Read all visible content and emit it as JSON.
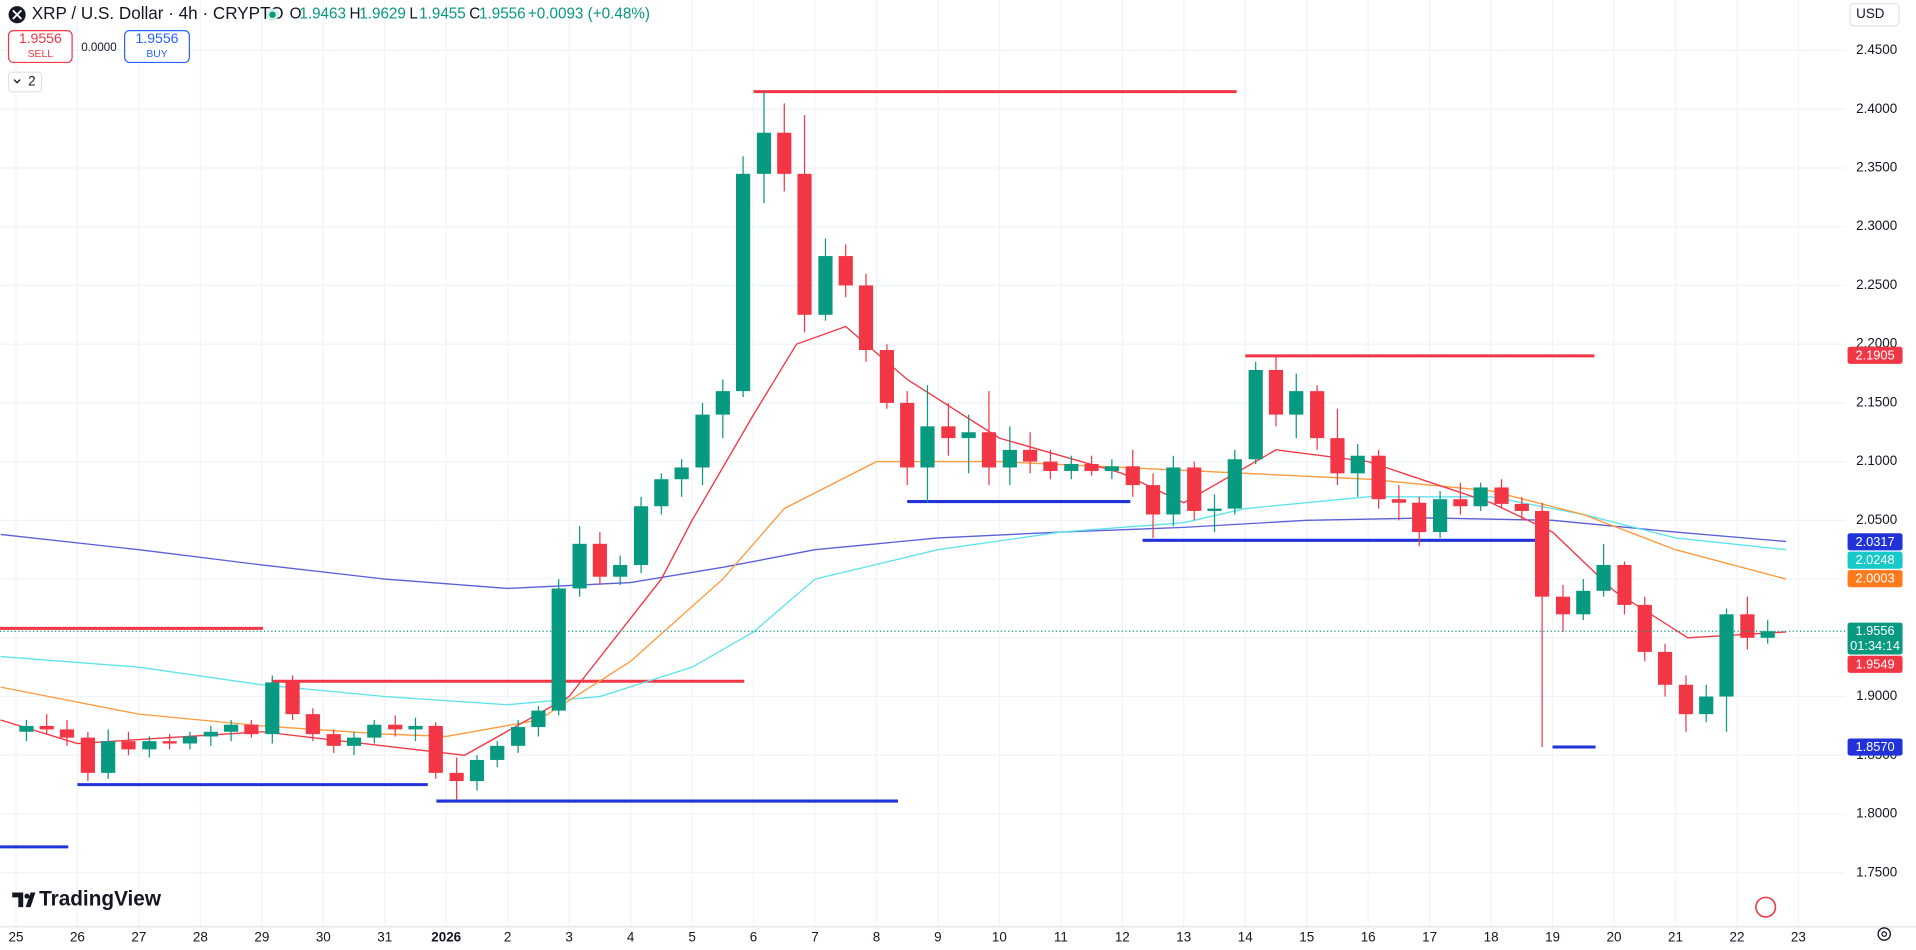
{
  "header": {
    "title": "XRP / U.S. Dollar · 4h · CRYPTO",
    "ohlc": [
      {
        "key": "O",
        "value": "1.9463"
      },
      {
        "key": "H",
        "value": "1.9629"
      },
      {
        "key": "L",
        "value": "1.9455"
      },
      {
        "key": "C",
        "value": "1.9556"
      }
    ],
    "change": "+0.0093 (+0.48%)",
    "sell_price": "1.9556",
    "sell_label": "SELL",
    "spread": "0.0000",
    "buy_price": "1.9556",
    "buy_label": "BUY",
    "indicators_count": "2",
    "currency": "USD",
    "logo": "TradingView"
  },
  "chart_data": {
    "type": "candlestick",
    "up_color": "#089981",
    "down_color": "#f23645",
    "grid": true,
    "xlim": [
      -0.26,
      29.76
    ],
    "ylim": [
      1.704,
      2.493
    ],
    "xticks": [
      {
        "value": 0,
        "label": "25"
      },
      {
        "value": 1,
        "label": "26"
      },
      {
        "value": 2,
        "label": "27"
      },
      {
        "value": 3,
        "label": "28"
      },
      {
        "value": 4,
        "label": "29"
      },
      {
        "value": 5,
        "label": "30"
      },
      {
        "value": 6,
        "label": "31"
      },
      {
        "value": 7,
        "label": "2026"
      },
      {
        "value": 8,
        "label": "2"
      },
      {
        "value": 9,
        "label": "3"
      },
      {
        "value": 10,
        "label": "4"
      },
      {
        "value": 11,
        "label": "5"
      },
      {
        "value": 12,
        "label": "6"
      },
      {
        "value": 13,
        "label": "7"
      },
      {
        "value": 14,
        "label": "8"
      },
      {
        "value": 15,
        "label": "9"
      },
      {
        "value": 16,
        "label": "10"
      },
      {
        "value": 17,
        "label": "11"
      },
      {
        "value": 18,
        "label": "12"
      },
      {
        "value": 19,
        "label": "13"
      },
      {
        "value": 20,
        "label": "14"
      },
      {
        "value": 21,
        "label": "15"
      },
      {
        "value": 22,
        "label": "16"
      },
      {
        "value": 23,
        "label": "17"
      },
      {
        "value": 24,
        "label": "18"
      },
      {
        "value": 25,
        "label": "19"
      },
      {
        "value": 26,
        "label": "20"
      },
      {
        "value": 27,
        "label": "21"
      },
      {
        "value": 28,
        "label": "22"
      },
      {
        "value": 29,
        "label": "23"
      }
    ],
    "yticks": [
      {
        "value": 2.45,
        "label": "2.4500"
      },
      {
        "value": 2.4,
        "label": "2.4000"
      },
      {
        "value": 2.35,
        "label": "2.3500"
      },
      {
        "value": 2.3,
        "label": "2.3000"
      },
      {
        "value": 2.25,
        "label": "2.2500"
      },
      {
        "value": 2.2,
        "label": "2.2000"
      },
      {
        "value": 2.15,
        "label": "2.1500"
      },
      {
        "value": 2.1,
        "label": "2.1000"
      },
      {
        "value": 2.05,
        "label": "2.0500"
      },
      {
        "value": 2.0,
        "label": "2.0000"
      },
      {
        "value": 1.95,
        "label": "1.9500"
      },
      {
        "value": 1.9,
        "label": "1.9000"
      },
      {
        "value": 1.85,
        "label": "1.8500"
      },
      {
        "value": 1.8,
        "label": "1.8000"
      },
      {
        "value": 1.75,
        "label": "1.7500"
      }
    ],
    "x": [
      0.17,
      0.5,
      0.83,
      1.17,
      1.5,
      1.83,
      2.17,
      2.5,
      2.83,
      3.17,
      3.5,
      3.83,
      4.17,
      4.5,
      4.83,
      5.17,
      5.5,
      5.83,
      6.17,
      6.5,
      6.83,
      7.17,
      7.5,
      7.83,
      8.17,
      8.5,
      8.83,
      9.17,
      9.5,
      9.83,
      10.17,
      10.5,
      10.83,
      11.17,
      11.5,
      11.83,
      12.17,
      12.5,
      12.83,
      13.17,
      13.5,
      13.83,
      14.17,
      14.5,
      14.83,
      15.17,
      15.5,
      15.83,
      16.17,
      16.5,
      16.83,
      17.17,
      17.5,
      17.83,
      18.17,
      18.5,
      18.83,
      19.17,
      19.5,
      19.83,
      20.17,
      20.5,
      20.83,
      21.17,
      21.5,
      21.83,
      22.17,
      22.5,
      22.83,
      23.17,
      23.5,
      23.83,
      24.17,
      24.5,
      24.83,
      25.17,
      25.5,
      25.83,
      26.17,
      26.5,
      26.83,
      27.17,
      27.5,
      27.83,
      28.17,
      28.5
    ],
    "open": [
      1.87,
      1.875,
      1.872,
      1.865,
      1.835,
      1.862,
      1.855,
      1.862,
      1.86,
      1.866,
      1.87,
      1.876,
      1.868,
      1.912,
      1.885,
      1.868,
      1.858,
      1.865,
      1.876,
      1.872,
      1.875,
      1.835,
      1.828,
      1.846,
      1.858,
      1.874,
      1.888,
      1.992,
      2.03,
      2.002,
      2.012,
      2.062,
      2.085,
      2.095,
      2.14,
      2.16,
      2.345,
      2.38,
      2.345,
      2.225,
      2.275,
      2.25,
      2.195,
      2.15,
      2.095,
      2.13,
      2.12,
      2.125,
      2.095,
      2.11,
      2.1,
      2.092,
      2.098,
      2.092,
      2.096,
      2.08,
      2.055,
      2.095,
      2.058,
      2.06,
      2.102,
      2.178,
      2.14,
      2.16,
      2.12,
      2.09,
      2.105,
      2.068,
      2.065,
      2.04,
      2.068,
      2.062,
      2.078,
      2.064,
      2.058,
      1.985,
      1.97,
      1.99,
      2.012,
      1.978,
      1.938,
      1.91,
      1.885,
      1.9,
      1.97,
      1.95
    ],
    "high": [
      1.88,
      1.885,
      1.88,
      1.87,
      1.872,
      1.87,
      1.866,
      1.868,
      1.87,
      1.875,
      1.88,
      1.88,
      1.918,
      1.918,
      1.89,
      1.872,
      1.87,
      1.88,
      1.884,
      1.882,
      1.878,
      1.848,
      1.85,
      1.862,
      1.88,
      1.892,
      2.0,
      2.045,
      2.04,
      2.02,
      2.07,
      2.09,
      2.102,
      2.15,
      2.17,
      2.36,
      2.415,
      2.405,
      2.395,
      2.29,
      2.285,
      2.26,
      2.2,
      2.16,
      2.165,
      2.15,
      2.14,
      2.16,
      2.13,
      2.125,
      2.11,
      2.105,
      2.105,
      2.102,
      2.11,
      2.09,
      2.105,
      2.1,
      2.072,
      2.11,
      2.185,
      2.19,
      2.175,
      2.165,
      2.145,
      2.115,
      2.11,
      2.08,
      2.07,
      2.075,
      2.082,
      2.082,
      2.085,
      2.07,
      2.065,
      1.995,
      2.0,
      2.03,
      2.015,
      1.985,
      1.945,
      1.918,
      1.91,
      1.975,
      1.985,
      1.965
    ],
    "low": [
      1.862,
      1.868,
      1.858,
      1.828,
      1.83,
      1.85,
      1.848,
      1.855,
      1.855,
      1.858,
      1.862,
      1.865,
      1.86,
      1.88,
      1.862,
      1.852,
      1.85,
      1.86,
      1.866,
      1.862,
      1.83,
      1.812,
      1.82,
      1.84,
      1.852,
      1.866,
      1.884,
      1.985,
      1.995,
      1.995,
      2.005,
      2.055,
      2.07,
      2.08,
      2.12,
      2.155,
      2.32,
      2.33,
      2.21,
      2.22,
      2.24,
      2.185,
      2.145,
      2.08,
      2.065,
      2.105,
      2.09,
      2.08,
      2.08,
      2.09,
      2.085,
      2.085,
      2.088,
      2.085,
      2.07,
      2.035,
      2.045,
      2.05,
      2.04,
      2.055,
      2.098,
      2.13,
      2.12,
      2.11,
      2.08,
      2.07,
      2.06,
      2.05,
      2.028,
      2.035,
      2.055,
      2.058,
      2.06,
      2.05,
      1.857,
      1.955,
      1.965,
      1.985,
      1.97,
      1.93,
      1.9,
      1.87,
      1.878,
      1.87,
      1.94,
      1.945
    ],
    "close": [
      1.875,
      1.872,
      1.865,
      1.835,
      1.862,
      1.855,
      1.862,
      1.86,
      1.866,
      1.87,
      1.876,
      1.868,
      1.912,
      1.885,
      1.868,
      1.858,
      1.865,
      1.876,
      1.872,
      1.875,
      1.835,
      1.828,
      1.846,
      1.858,
      1.874,
      1.888,
      1.992,
      2.03,
      2.002,
      2.012,
      2.062,
      2.085,
      2.095,
      2.14,
      2.16,
      2.345,
      2.38,
      2.345,
      2.225,
      2.275,
      2.25,
      2.195,
      2.15,
      2.095,
      2.13,
      2.12,
      2.125,
      2.095,
      2.11,
      2.1,
      2.092,
      2.098,
      2.092,
      2.096,
      2.08,
      2.055,
      2.095,
      2.058,
      2.06,
      2.102,
      2.178,
      2.14,
      2.16,
      2.12,
      2.09,
      2.105,
      2.068,
      2.065,
      2.04,
      2.068,
      2.062,
      2.078,
      2.064,
      2.058,
      1.985,
      1.97,
      1.99,
      2.012,
      1.978,
      1.938,
      1.91,
      1.885,
      1.9,
      1.97,
      1.95,
      1.9556
    ],
    "lines": [
      {
        "color": "#5b5fd8",
        "x": [
          -0.25,
          2,
          4,
          6,
          8,
          10,
          11.5,
          13,
          15,
          17,
          19,
          21,
          23,
          25,
          27,
          28.8
        ],
        "values": [
          2.038,
          2.025,
          2.012,
          2.0,
          1.992,
          1.997,
          2.01,
          2.025,
          2.035,
          2.04,
          2.044,
          2.05,
          2.052,
          2.05,
          2.04,
          2.032
        ]
      },
      {
        "color": "#5fe3ea",
        "x": [
          -0.25,
          2,
          4,
          6,
          8,
          9.5,
          11,
          12,
          13,
          15,
          17,
          19,
          20,
          22,
          24,
          25.5,
          27,
          28.8
        ],
        "values": [
          1.934,
          1.925,
          1.91,
          1.9,
          1.893,
          1.9,
          1.925,
          1.955,
          2.0,
          2.025,
          2.04,
          2.048,
          2.06,
          2.07,
          2.07,
          2.055,
          2.035,
          2.025
        ]
      },
      {
        "color": "#ff9a3c",
        "x": [
          -0.25,
          2,
          4,
          6,
          7,
          8.5,
          10,
          11.5,
          12.5,
          14,
          16,
          18,
          20,
          22,
          24,
          25.5,
          27,
          28.8
        ],
        "values": [
          1.908,
          1.885,
          1.875,
          1.868,
          1.866,
          1.88,
          1.93,
          2.0,
          2.06,
          2.1,
          2.1,
          2.095,
          2.09,
          2.085,
          2.075,
          2.055,
          2.025,
          2.0
        ]
      },
      {
        "color": "#f23645",
        "x": [
          -0.25,
          1,
          4,
          7.3,
          9,
          10.5,
          11,
          12,
          12.7,
          13.5,
          14.5,
          16,
          18,
          19,
          20.5,
          22,
          24,
          25,
          26,
          27.2,
          28.8
        ],
        "values": [
          1.88,
          1.86,
          1.87,
          1.85,
          1.9,
          2.0,
          2.05,
          2.14,
          2.2,
          2.215,
          2.17,
          2.12,
          2.09,
          2.065,
          2.11,
          2.1,
          2.065,
          2.04,
          1.99,
          1.95,
          1.955
        ]
      }
    ],
    "levels": [
      {
        "value": 2.415,
        "x": [
          12,
          19.86
        ],
        "color": "#f23645"
      },
      {
        "value": 2.19,
        "x": [
          20,
          25.68
        ],
        "color": "#f23645"
      },
      {
        "value": 1.913,
        "x": [
          4.16,
          11.85
        ],
        "color": "#f23645"
      },
      {
        "value": 1.958,
        "x": [
          -0.26,
          4.02
        ],
        "color": "#f23645"
      },
      {
        "value": 2.066,
        "x": [
          14.5,
          18.13
        ],
        "color": "#2133d8"
      },
      {
        "value": 2.033,
        "x": [
          18.33,
          24.8
        ],
        "color": "#2133d8"
      },
      {
        "value": 1.857,
        "x": [
          25,
          25.7
        ],
        "color": "#2133d8"
      },
      {
        "value": 1.825,
        "x": [
          1,
          6.7
        ],
        "color": "#2133d8"
      },
      {
        "value": 1.811,
        "x": [
          6.84,
          14.35
        ],
        "color": "#2133d8"
      },
      {
        "value": 1.772,
        "x": [
          -0.26,
          0.85
        ],
        "color": "#2133d8"
      }
    ],
    "price_tags": [
      {
        "value": 2.1905,
        "label": "2.1905",
        "color": "#f23645"
      },
      {
        "value": 2.0317,
        "label": "2.0317",
        "color": "#2133d8"
      },
      {
        "value": 2.0248,
        "label": "2.0248",
        "color": "#17c9c9"
      },
      {
        "value": 2.0003,
        "label": "2.0003",
        "color": "#ff7a1a"
      },
      {
        "value": 1.9556,
        "label": "1.9556",
        "color": "#089981",
        "sublabel": "01:34:14"
      },
      {
        "value": 1.9549,
        "label": "1.9549",
        "color": "#f23645"
      },
      {
        "value": 1.857,
        "label": "1.8570",
        "color": "#2133d8"
      }
    ],
    "last_price_tag": 4
  }
}
